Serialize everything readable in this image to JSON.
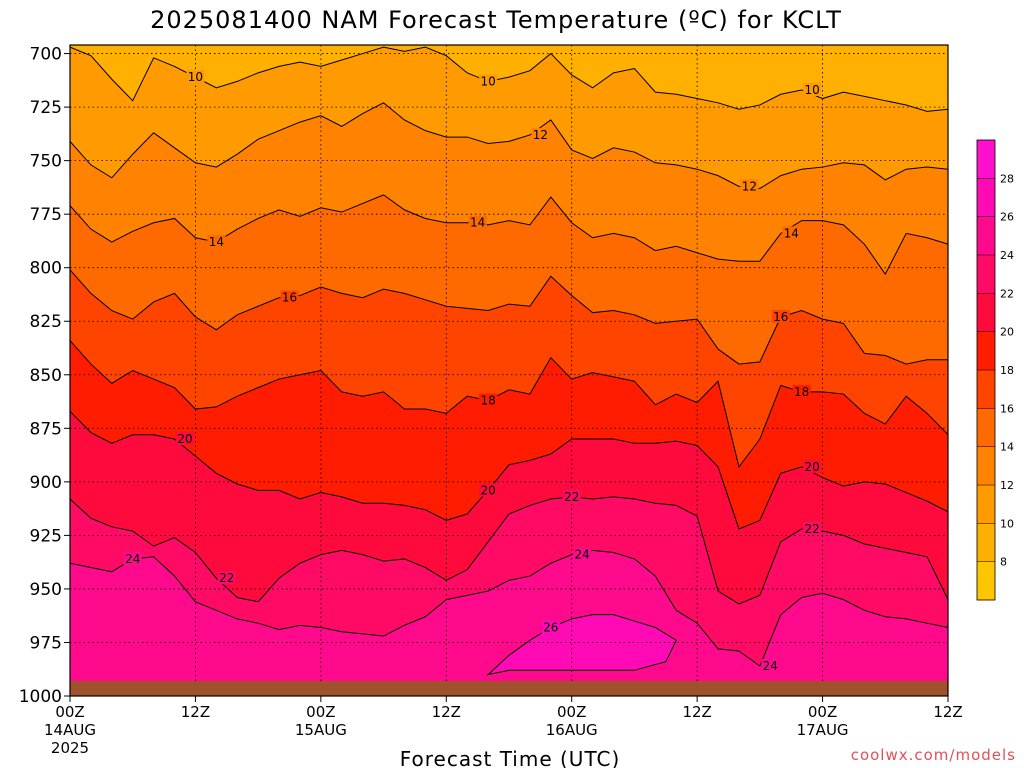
{
  "chart_data": {
    "type": "heatmap",
    "title": "2025081400 NAM Forecast Temperature (ºC) for KCLT",
    "xlabel": "Forecast Time (UTC)",
    "credit": "coolwx.com/models",
    "x": {
      "range_hours": [
        0,
        84
      ],
      "ticks": [
        {
          "hour": 0,
          "label": "00Z",
          "sub1": "14AUG",
          "sub2": "2025"
        },
        {
          "hour": 12,
          "label": "12Z",
          "sub1": "",
          "sub2": ""
        },
        {
          "hour": 24,
          "label": "00Z",
          "sub1": "15AUG",
          "sub2": ""
        },
        {
          "hour": 36,
          "label": "12Z",
          "sub1": "",
          "sub2": ""
        },
        {
          "hour": 48,
          "label": "00Z",
          "sub1": "16AUG",
          "sub2": ""
        },
        {
          "hour": 60,
          "label": "12Z",
          "sub1": "",
          "sub2": ""
        },
        {
          "hour": 72,
          "label": "00Z",
          "sub1": "17AUG",
          "sub2": ""
        },
        {
          "hour": 84,
          "label": "12Z",
          "sub1": "",
          "sub2": ""
        }
      ]
    },
    "y": {
      "unit": "hPa",
      "range": [
        1000,
        696
      ],
      "ticks": [
        {
          "value": 700,
          "label": "700"
        },
        {
          "value": 725,
          "label": "725"
        },
        {
          "value": 750,
          "label": "750"
        },
        {
          "value": 775,
          "label": "775"
        },
        {
          "value": 800,
          "label": "800"
        },
        {
          "value": 825,
          "label": "825"
        },
        {
          "value": 850,
          "label": "850"
        },
        {
          "value": 875,
          "label": "875"
        },
        {
          "value": 900,
          "label": "900"
        },
        {
          "value": 925,
          "label": "925"
        },
        {
          "value": 950,
          "label": "950"
        },
        {
          "value": 975,
          "label": "975"
        },
        {
          "value": 1000,
          "label": "1000"
        }
      ]
    },
    "grid": true,
    "ground": {
      "pressure": 993,
      "color": "#a0522d"
    },
    "colorbar": {
      "position": "right",
      "bins": [
        {
          "low": 6,
          "high": 8,
          "color": "#ffc600"
        },
        {
          "low": 8,
          "high": 10,
          "color": "#ffb000"
        },
        {
          "low": 10,
          "high": 12,
          "color": "#ff9a00"
        },
        {
          "low": 12,
          "high": 14,
          "color": "#ff8200"
        },
        {
          "low": 14,
          "high": 16,
          "color": "#ff6a00"
        },
        {
          "low": 16,
          "high": 18,
          "color": "#ff4400"
        },
        {
          "low": 18,
          "high": 20,
          "color": "#ff1c00"
        },
        {
          "low": 20,
          "high": 22,
          "color": "#ff0a3c"
        },
        {
          "low": 22,
          "high": 24,
          "color": "#ff0a64"
        },
        {
          "low": 24,
          "high": 26,
          "color": "#ff0a8c"
        },
        {
          "low": 26,
          "high": 28,
          "color": "#ff0ab4"
        },
        {
          "low": 28,
          "high": 30,
          "color": "#ff10cc"
        }
      ],
      "labels": [
        "8",
        "10",
        "12",
        "14",
        "16",
        "18",
        "20",
        "22",
        "24",
        "26",
        "28"
      ]
    },
    "isotherms": [
      {
        "temp": 10,
        "hours": [
          0,
          2,
          4,
          6,
          8,
          10,
          12,
          14,
          16,
          18,
          20,
          22,
          24,
          26,
          28,
          30,
          32,
          34,
          36,
          38,
          40,
          42,
          44,
          46,
          48,
          50,
          52,
          54,
          56,
          58,
          60,
          62,
          64,
          66,
          68,
          70,
          72,
          74,
          76,
          78,
          80,
          82,
          84
        ],
        "pressures": [
          697,
          701,
          712,
          722,
          702,
          706,
          711,
          716,
          713,
          709,
          706,
          704,
          706,
          703,
          700,
          697,
          699,
          697,
          701,
          709,
          713,
          711,
          708,
          700,
          710,
          716,
          709,
          707,
          718,
          719,
          721,
          723,
          726,
          724,
          719,
          717,
          721,
          718,
          720,
          722,
          724,
          727,
          726
        ],
        "labels": [
          {
            "hour": 12,
            "text": "10"
          },
          {
            "hour": 40,
            "text": "10"
          },
          {
            "hour": 71,
            "text": "10"
          }
        ]
      },
      {
        "temp": 12,
        "hours": [
          0,
          2,
          4,
          6,
          8,
          10,
          12,
          14,
          16,
          18,
          20,
          22,
          24,
          26,
          28,
          30,
          32,
          34,
          36,
          38,
          40,
          42,
          44,
          46,
          48,
          50,
          52,
          54,
          56,
          58,
          60,
          62,
          64,
          66,
          68,
          70,
          72,
          74,
          76,
          78,
          80,
          82,
          84
        ],
        "pressures": [
          741,
          752,
          758,
          747,
          737,
          744,
          751,
          753,
          747,
          740,
          736,
          732,
          729,
          734,
          728,
          723,
          731,
          736,
          739,
          739,
          742,
          741,
          738,
          731,
          745,
          749,
          744,
          746,
          751,
          752,
          754,
          757,
          762,
          763,
          757,
          754,
          753,
          751,
          752,
          759,
          754,
          753,
          754
        ],
        "labels": [
          {
            "hour": 45,
            "text": "12"
          },
          {
            "hour": 65,
            "text": "12"
          }
        ]
      },
      {
        "temp": 14,
        "hours": [
          0,
          2,
          4,
          6,
          8,
          10,
          12,
          14,
          16,
          18,
          20,
          22,
          24,
          26,
          28,
          30,
          32,
          34,
          36,
          38,
          40,
          42,
          44,
          46,
          48,
          50,
          52,
          54,
          56,
          58,
          60,
          62,
          64,
          66,
          68,
          70,
          72,
          74,
          76,
          78,
          80,
          82,
          84
        ],
        "pressures": [
          771,
          782,
          788,
          783,
          779,
          777,
          786,
          788,
          782,
          777,
          773,
          776,
          772,
          774,
          770,
          766,
          773,
          777,
          779,
          779,
          780,
          778,
          780,
          767,
          779,
          786,
          784,
          786,
          792,
          790,
          793,
          796,
          797,
          797,
          784,
          778,
          778,
          780,
          789,
          803,
          784,
          786,
          789
        ],
        "labels": [
          {
            "hour": 14,
            "text": "14"
          },
          {
            "hour": 39,
            "text": "14"
          },
          {
            "hour": 69,
            "text": "14"
          }
        ]
      },
      {
        "temp": 16,
        "hours": [
          0,
          2,
          4,
          6,
          8,
          10,
          12,
          14,
          16,
          18,
          20,
          22,
          24,
          26,
          28,
          30,
          32,
          34,
          36,
          38,
          40,
          42,
          44,
          46,
          48,
          50,
          52,
          54,
          56,
          58,
          60,
          62,
          64,
          66,
          68,
          70,
          72,
          74,
          76,
          78,
          80,
          82,
          84
        ],
        "pressures": [
          801,
          812,
          820,
          824,
          816,
          812,
          823,
          829,
          822,
          818,
          814,
          813,
          809,
          812,
          814,
          810,
          812,
          815,
          818,
          819,
          820,
          817,
          818,
          804,
          813,
          821,
          820,
          822,
          826,
          825,
          824,
          838,
          845,
          844,
          823,
          820,
          824,
          826,
          840,
          841,
          845,
          843,
          843
        ],
        "labels": [
          {
            "hour": 21,
            "text": "16"
          },
          {
            "hour": 68,
            "text": "16"
          }
        ]
      },
      {
        "temp": 18,
        "hours": [
          0,
          2,
          4,
          6,
          8,
          10,
          12,
          14,
          16,
          18,
          20,
          22,
          24,
          26,
          28,
          30,
          32,
          34,
          36,
          38,
          40,
          42,
          44,
          46,
          48,
          50,
          52,
          54,
          56,
          58,
          60,
          62,
          64,
          66,
          68,
          70,
          72,
          74,
          76,
          78,
          80,
          82,
          84
        ],
        "pressures": [
          834,
          845,
          854,
          848,
          852,
          856,
          866,
          865,
          860,
          856,
          852,
          850,
          848,
          858,
          860,
          858,
          866,
          866,
          868,
          860,
          862,
          857,
          859,
          842,
          852,
          849,
          851,
          853,
          864,
          859,
          863,
          853,
          893,
          880,
          855,
          858,
          858,
          859,
          868,
          873,
          860,
          868,
          878
        ],
        "labels": [
          {
            "hour": 40,
            "text": "18"
          },
          {
            "hour": 70,
            "text": "18"
          }
        ]
      },
      {
        "temp": 20,
        "hours": [
          0,
          2,
          4,
          6,
          8,
          10,
          12,
          14,
          16,
          18,
          20,
          22,
          24,
          26,
          28,
          30,
          32,
          34,
          36,
          38,
          40,
          42,
          44,
          46,
          48,
          50,
          52,
          54,
          56,
          58,
          60,
          62,
          64,
          66,
          68,
          70,
          72,
          74,
          76,
          78,
          80,
          82,
          84
        ],
        "pressures": [
          867,
          877,
          882,
          878,
          878,
          880,
          888,
          896,
          901,
          904,
          904,
          908,
          905,
          907,
          910,
          910,
          911,
          913,
          918,
          915,
          904,
          892,
          890,
          887,
          880,
          880,
          880,
          882,
          882,
          881,
          883,
          893,
          922,
          918,
          896,
          893,
          898,
          902,
          900,
          901,
          905,
          909,
          914
        ],
        "labels": [
          {
            "hour": 11,
            "text": "20"
          },
          {
            "hour": 40,
            "text": "20"
          },
          {
            "hour": 71,
            "text": "20"
          }
        ]
      },
      {
        "temp": 22,
        "hours": [
          0,
          2,
          4,
          6,
          8,
          10,
          12,
          14,
          16,
          18,
          20,
          22,
          24,
          26,
          28,
          30,
          32,
          34,
          36,
          38,
          40,
          42,
          44,
          46,
          48,
          50,
          52,
          54,
          56,
          58,
          60,
          62,
          64,
          66,
          68,
          70,
          72,
          74,
          76,
          78,
          80,
          82,
          84
        ],
        "pressures": [
          908,
          917,
          921,
          923,
          930,
          926,
          933,
          945,
          954,
          956,
          945,
          938,
          934,
          932,
          934,
          937,
          936,
          940,
          946,
          941,
          928,
          915,
          911,
          908,
          907,
          908,
          907,
          908,
          910,
          911,
          916,
          951,
          957,
          953,
          928,
          922,
          923,
          925,
          929,
          931,
          933,
          935,
          955
        ],
        "labels": [
          {
            "hour": 15,
            "text": "22"
          },
          {
            "hour": 48,
            "text": "22"
          },
          {
            "hour": 71,
            "text": "22"
          }
        ]
      },
      {
        "temp": 24,
        "hours": [
          0,
          2,
          4,
          6,
          8,
          10,
          12,
          14,
          16,
          18,
          20,
          22,
          24,
          26,
          28,
          30,
          32,
          34,
          36,
          38,
          40,
          42,
          44,
          46,
          48,
          50,
          52,
          54,
          56,
          58,
          60,
          62,
          64,
          66,
          68,
          70,
          72,
          74,
          76,
          78,
          80,
          82,
          84
        ],
        "pressures": [
          938,
          940,
          942,
          936,
          935,
          944,
          956,
          960,
          964,
          966,
          969,
          967,
          968,
          970,
          971,
          972,
          967,
          963,
          955,
          953,
          951,
          946,
          944,
          938,
          934,
          932,
          933,
          936,
          944,
          960,
          966,
          978,
          979,
          986,
          962,
          954,
          952,
          955,
          960,
          963,
          964,
          966,
          968
        ],
        "labels": [
          {
            "hour": 6,
            "text": "24"
          },
          {
            "hour": 49,
            "text": "24"
          },
          {
            "hour": 67,
            "text": "24"
          }
        ]
      },
      {
        "temp": 26,
        "hours": [
          40,
          42,
          44,
          46,
          48,
          50,
          52,
          54,
          56,
          58,
          57,
          54,
          50,
          46,
          42,
          40
        ],
        "pressures": [
          990,
          981,
          974,
          968,
          964,
          962,
          962,
          965,
          968,
          974,
          984,
          988,
          988,
          988,
          988,
          990
        ],
        "labels": [
          {
            "hour": 46,
            "text": "26"
          }
        ]
      }
    ]
  }
}
